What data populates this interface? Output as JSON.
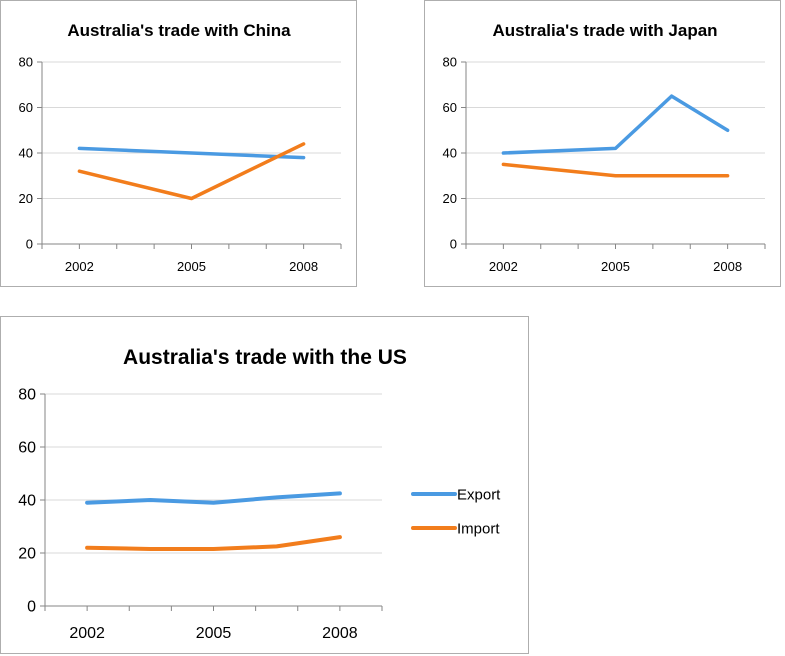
{
  "colors": {
    "export": "#4a9ae2",
    "import": "#f27d1c",
    "grid": "#d9d9d9",
    "axis": "#868686"
  },
  "chart_data": [
    {
      "type": "line",
      "title": "Australia's trade with China",
      "x": [
        2002,
        2005,
        2008
      ],
      "x_tick_labels": [
        "2002",
        "2005",
        "2008"
      ],
      "y_ticks": [
        0,
        20,
        40,
        60,
        80
      ],
      "ylim": [
        0,
        80
      ],
      "grid": true,
      "series": [
        {
          "name": "Export",
          "x": [
            2002,
            2005,
            2008
          ],
          "values": [
            42,
            40,
            38
          ]
        },
        {
          "name": "Import",
          "x": [
            2002,
            2005,
            2008
          ],
          "values": [
            32,
            20,
            44
          ]
        }
      ]
    },
    {
      "type": "line",
      "title": "Australia's trade with Japan",
      "x": [
        2002,
        2005,
        2008
      ],
      "x_tick_labels": [
        "2002",
        "2005",
        "2008"
      ],
      "y_ticks": [
        0,
        20,
        40,
        60,
        80
      ],
      "ylim": [
        0,
        80
      ],
      "grid": true,
      "series": [
        {
          "name": "Export",
          "x": [
            2002,
            2005,
            2006.5,
            2008
          ],
          "values": [
            40,
            42,
            65,
            50
          ]
        },
        {
          "name": "Import",
          "x": [
            2002,
            2005,
            2006.5,
            2008
          ],
          "values": [
            35,
            30,
            30,
            30
          ]
        }
      ]
    },
    {
      "type": "line",
      "title": "Australia's trade with the US",
      "x": [
        2002,
        2005,
        2008
      ],
      "x_tick_labels": [
        "2002",
        "2005",
        "2008"
      ],
      "y_ticks": [
        0,
        20,
        40,
        60,
        80
      ],
      "ylim": [
        0,
        80
      ],
      "grid": true,
      "legend": "right",
      "series": [
        {
          "name": "Export",
          "x": [
            2002,
            2003.5,
            2005,
            2006.5,
            2008
          ],
          "values": [
            39,
            40,
            39,
            41,
            42.5
          ]
        },
        {
          "name": "Import",
          "x": [
            2002,
            2003.5,
            2005,
            2006.5,
            2008
          ],
          "values": [
            22,
            21.5,
            21.5,
            22.5,
            26
          ]
        }
      ]
    }
  ]
}
